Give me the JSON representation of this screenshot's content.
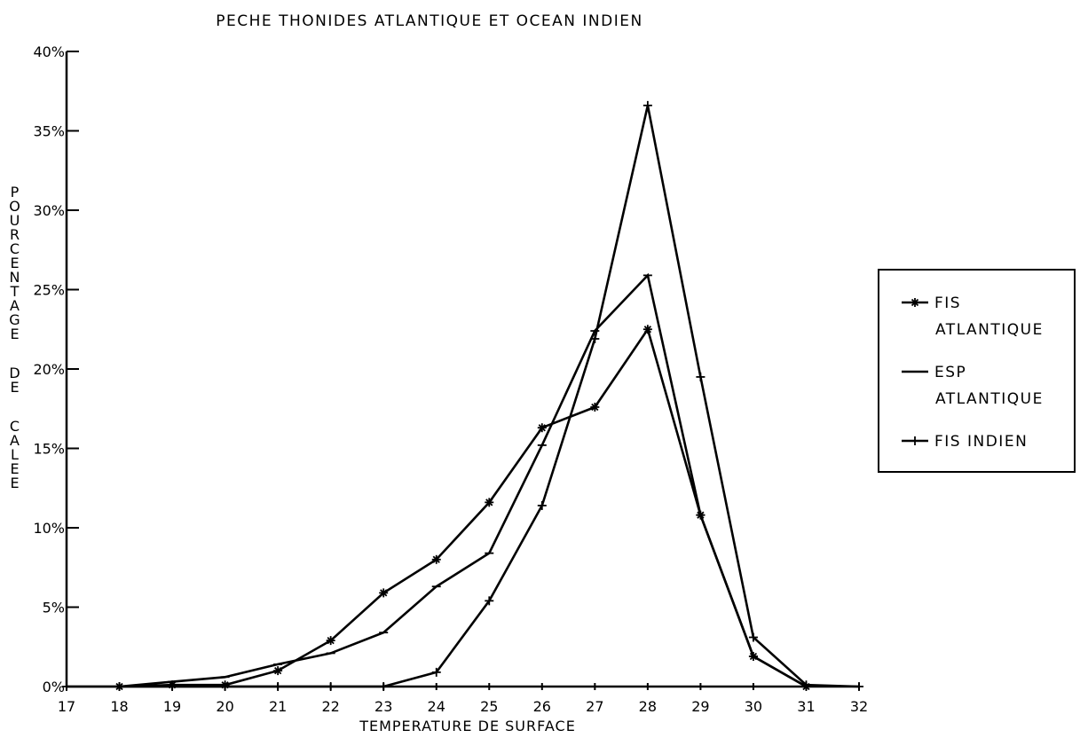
{
  "chart_data": {
    "type": "line",
    "title": "PECHE THONIDES ATLANTIQUE ET OCEAN INDIEN",
    "xlabel": "TEMPERATURE DE SURFACE",
    "ylabel": "POURCENTAGE DE CALEE",
    "x": [
      17,
      18,
      19,
      20,
      21,
      22,
      23,
      24,
      25,
      26,
      27,
      28,
      29,
      30,
      31,
      32
    ],
    "x_tick_labels": [
      "17",
      "18",
      "19",
      "20",
      "21",
      "22",
      "23",
      "24",
      "25",
      "26",
      "27",
      "28",
      "29",
      "30",
      "31",
      "32"
    ],
    "y_ticks": [
      0,
      5,
      10,
      15,
      20,
      25,
      30,
      35,
      40
    ],
    "y_tick_labels": [
      "0%",
      "5%",
      "10%",
      "15%",
      "20%",
      "25%",
      "30%",
      "35%",
      "40%"
    ],
    "xlim": [
      17,
      32
    ],
    "ylim": [
      0,
      40
    ],
    "grid": false,
    "legend_position": "right",
    "series": [
      {
        "name": "FIS ATLANTIQUE",
        "legend_lines": [
          "FIS",
          "ATLANTIQUE"
        ],
        "marker": "*",
        "x": [
          18,
          19,
          20,
          21,
          22,
          23,
          24,
          25,
          26,
          27,
          28,
          29,
          30,
          31
        ],
        "values": [
          0,
          0.1,
          0.1,
          1.0,
          2.9,
          5.9,
          8.0,
          11.6,
          16.3,
          17.6,
          22.5,
          10.8,
          1.9,
          0
        ]
      },
      {
        "name": "ESP ATLANTIQUE",
        "legend_lines": [
          "ESP",
          "ATLANTIQUE"
        ],
        "marker": "-",
        "x": [
          18,
          19,
          20,
          21,
          22,
          23,
          24,
          25,
          26,
          27,
          28,
          29,
          30,
          31
        ],
        "values": [
          0,
          0.3,
          0.6,
          1.4,
          2.1,
          3.4,
          6.3,
          8.4,
          15.2,
          22.4,
          25.9,
          10.8,
          1.9,
          0
        ]
      },
      {
        "name": "FIS INDIEN",
        "legend_lines": [
          "FIS INDIEN"
        ],
        "marker": "+",
        "x": [
          17,
          18,
          19,
          20,
          21,
          22,
          23,
          24,
          25,
          26,
          27,
          28,
          29,
          30,
          31,
          32
        ],
        "values": [
          0,
          0,
          0,
          0,
          0,
          0,
          0,
          0.9,
          5.4,
          11.4,
          21.9,
          36.6,
          19.5,
          3.1,
          0.1,
          0
        ]
      }
    ],
    "colors": {
      "line": "#000000",
      "background": "#ffffff"
    }
  }
}
